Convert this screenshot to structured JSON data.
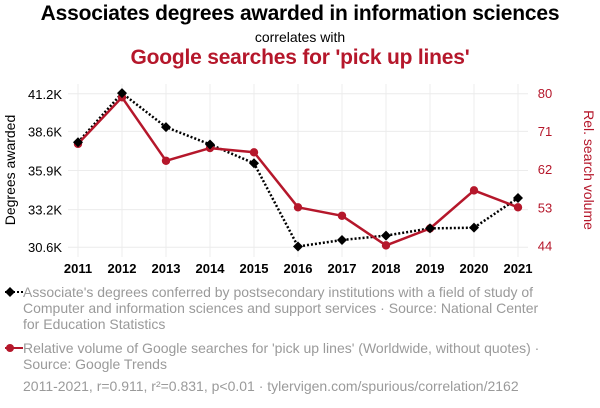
{
  "header": {
    "title": "Associates degrees awarded in information sciences",
    "correlates": "correlates with",
    "title2": "Google searches for 'pick up lines'"
  },
  "chart_data": {
    "type": "line",
    "x": [
      2011,
      2012,
      2013,
      2014,
      2015,
      2016,
      2017,
      2018,
      2019,
      2020,
      2021
    ],
    "series": [
      {
        "name": "Associate's degrees conferred by postsecondary institutions with a field of study of Computer and information sciences and support services",
        "axis": "left",
        "color": "#000000",
        "style": "dotted",
        "marker": "diamond",
        "values": [
          37850,
          41250,
          38900,
          37700,
          36400,
          30650,
          31100,
          31400,
          31900,
          31950,
          34000
        ]
      },
      {
        "name": "Relative volume of Google searches for 'pick up lines' (Worldwide, without quotes)",
        "axis": "right",
        "color": "#b5172b",
        "style": "solid",
        "marker": "circle",
        "values": [
          68,
          79,
          64,
          67,
          66,
          53,
          51,
          44,
          48,
          57,
          53
        ]
      }
    ],
    "xlabel": "",
    "ylabel_left": "Degrees awarded",
    "ylabel_right": "Rel. search volume",
    "ylim_left": [
      30200,
      41600
    ],
    "ylim_right": [
      42.2,
      81.2
    ],
    "left_ticks": [
      30600,
      33200,
      35900,
      38600,
      41200
    ],
    "left_tick_labels": [
      "30.6K",
      "33.2K",
      "35.9K",
      "38.6K",
      "41.2K"
    ],
    "right_ticks": [
      44,
      53,
      62,
      71,
      80
    ],
    "right_tick_labels": [
      "44",
      "53",
      "62",
      "71",
      "80"
    ],
    "grid": true
  },
  "legend": {
    "item1": "Associate's degrees conferred by postsecondary institutions with a field of study of Computer and information sciences and support services · Source: National Center for Education Statistics",
    "item2": "Relative volume of Google searches for 'pick up lines' (Worldwide, without quotes) · Source: Google Trends"
  },
  "stats": "2011-2021, r=0.911, r²=0.831, p<0.01 · tylervigen.com/spurious/correlation/2162",
  "colors": {
    "left": "#000000",
    "right": "#b5172b",
    "grid": "#ececec",
    "note": "#9a9a9a"
  }
}
